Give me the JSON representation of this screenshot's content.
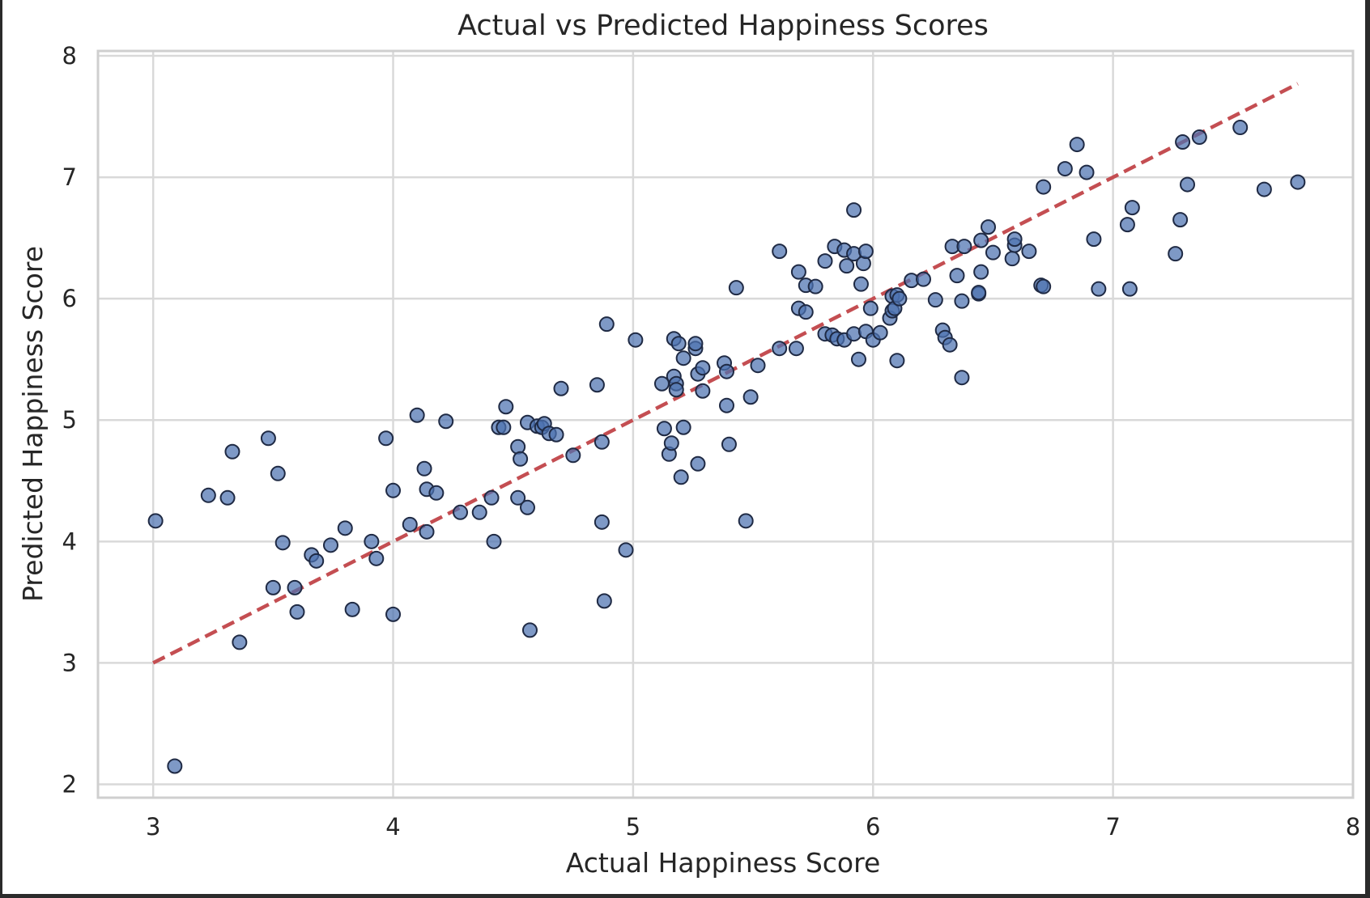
{
  "chart_data": {
    "type": "scatter",
    "title": "Actual vs Predicted Happiness Scores",
    "xlabel": "Actual Happiness Score",
    "ylabel": "Predicted Happiness Score",
    "xlim": [
      2.77,
      8.0
    ],
    "ylim": [
      1.89,
      8.04
    ],
    "xticks": [
      3,
      4,
      5,
      6,
      7,
      8
    ],
    "yticks": [
      2,
      3,
      4,
      5,
      6,
      7,
      8
    ],
    "grid": true,
    "legend": "none",
    "colors": {
      "points": "#4c72b0",
      "point_edge": "#1f2a44",
      "reference_line": "#c44e52",
      "grid": "#d9d9d9",
      "axes": "#cfcfcf"
    },
    "reference_line": {
      "x": [
        3.0,
        7.77
      ],
      "y": [
        3.0,
        7.77
      ],
      "style": "dashed"
    },
    "series": [
      {
        "points": [
          [
            3.01,
            4.17
          ],
          [
            3.09,
            2.15
          ],
          [
            3.23,
            4.38
          ],
          [
            3.31,
            4.36
          ],
          [
            3.33,
            4.74
          ],
          [
            3.36,
            3.17
          ],
          [
            3.48,
            4.85
          ],
          [
            3.5,
            3.62
          ],
          [
            3.52,
            4.56
          ],
          [
            3.54,
            3.99
          ],
          [
            3.59,
            3.62
          ],
          [
            3.6,
            3.42
          ],
          [
            3.66,
            3.89
          ],
          [
            3.68,
            3.84
          ],
          [
            3.74,
            3.97
          ],
          [
            3.8,
            4.11
          ],
          [
            3.83,
            3.44
          ],
          [
            3.91,
            4.0
          ],
          [
            3.93,
            3.86
          ],
          [
            3.97,
            4.85
          ],
          [
            4.0,
            4.42
          ],
          [
            4.0,
            3.4
          ],
          [
            4.07,
            4.14
          ],
          [
            4.1,
            5.04
          ],
          [
            4.13,
            4.6
          ],
          [
            4.14,
            4.43
          ],
          [
            4.14,
            4.08
          ],
          [
            4.18,
            4.4
          ],
          [
            4.22,
            4.99
          ],
          [
            4.28,
            4.24
          ],
          [
            4.36,
            4.24
          ],
          [
            4.41,
            4.36
          ],
          [
            4.42,
            4.0
          ],
          [
            4.44,
            4.94
          ],
          [
            4.46,
            4.94
          ],
          [
            4.47,
            5.11
          ],
          [
            4.52,
            4.78
          ],
          [
            4.52,
            4.36
          ],
          [
            4.53,
            4.68
          ],
          [
            4.56,
            4.98
          ],
          [
            4.56,
            4.28
          ],
          [
            4.57,
            3.27
          ],
          [
            4.6,
            4.95
          ],
          [
            4.62,
            4.94
          ],
          [
            4.63,
            4.97
          ],
          [
            4.65,
            4.89
          ],
          [
            4.68,
            4.88
          ],
          [
            4.7,
            5.26
          ],
          [
            4.75,
            4.71
          ],
          [
            4.85,
            5.29
          ],
          [
            4.87,
            4.82
          ],
          [
            4.87,
            4.16
          ],
          [
            4.88,
            3.51
          ],
          [
            4.89,
            5.79
          ],
          [
            4.97,
            3.93
          ],
          [
            5.01,
            5.66
          ],
          [
            5.12,
            5.3
          ],
          [
            5.13,
            4.93
          ],
          [
            5.15,
            4.72
          ],
          [
            5.16,
            4.81
          ],
          [
            5.17,
            5.67
          ],
          [
            5.17,
            5.36
          ],
          [
            5.18,
            5.3
          ],
          [
            5.18,
            5.25
          ],
          [
            5.19,
            5.63
          ],
          [
            5.2,
            4.53
          ],
          [
            5.21,
            5.51
          ],
          [
            5.21,
            4.94
          ],
          [
            5.26,
            5.59
          ],
          [
            5.26,
            5.63
          ],
          [
            5.27,
            5.38
          ],
          [
            5.27,
            4.64
          ],
          [
            5.29,
            5.43
          ],
          [
            5.29,
            5.24
          ],
          [
            5.38,
            5.47
          ],
          [
            5.39,
            5.4
          ],
          [
            5.39,
            5.12
          ],
          [
            5.4,
            4.8
          ],
          [
            5.43,
            6.09
          ],
          [
            5.47,
            4.17
          ],
          [
            5.49,
            5.19
          ],
          [
            5.52,
            5.45
          ],
          [
            5.61,
            5.59
          ],
          [
            5.61,
            6.39
          ],
          [
            5.68,
            5.59
          ],
          [
            5.69,
            5.92
          ],
          [
            5.69,
            6.22
          ],
          [
            5.72,
            6.11
          ],
          [
            5.72,
            5.89
          ],
          [
            5.76,
            6.1
          ],
          [
            5.8,
            6.31
          ],
          [
            5.8,
            5.71
          ],
          [
            5.83,
            5.7
          ],
          [
            5.84,
            6.43
          ],
          [
            5.85,
            5.67
          ],
          [
            5.88,
            6.4
          ],
          [
            5.88,
            5.66
          ],
          [
            5.89,
            6.27
          ],
          [
            5.92,
            6.73
          ],
          [
            5.92,
            6.37
          ],
          [
            5.92,
            5.71
          ],
          [
            5.94,
            5.5
          ],
          [
            5.95,
            6.12
          ],
          [
            5.96,
            6.29
          ],
          [
            5.97,
            6.39
          ],
          [
            5.97,
            5.73
          ],
          [
            5.99,
            5.92
          ],
          [
            6.0,
            5.66
          ],
          [
            6.03,
            5.72
          ],
          [
            6.07,
            5.84
          ],
          [
            6.08,
            5.9
          ],
          [
            6.08,
            6.02
          ],
          [
            6.09,
            5.92
          ],
          [
            6.1,
            6.03
          ],
          [
            6.1,
            5.49
          ],
          [
            6.11,
            6.0
          ],
          [
            6.16,
            6.15
          ],
          [
            6.21,
            6.16
          ],
          [
            6.26,
            5.99
          ],
          [
            6.29,
            5.74
          ],
          [
            6.3,
            5.68
          ],
          [
            6.32,
            5.62
          ],
          [
            6.33,
            6.43
          ],
          [
            6.35,
            6.19
          ],
          [
            6.37,
            5.98
          ],
          [
            6.37,
            5.35
          ],
          [
            6.38,
            6.43
          ],
          [
            6.44,
            6.04
          ],
          [
            6.44,
            6.05
          ],
          [
            6.45,
            6.48
          ],
          [
            6.45,
            6.22
          ],
          [
            6.48,
            6.59
          ],
          [
            6.5,
            6.38
          ],
          [
            6.58,
            6.33
          ],
          [
            6.59,
            6.44
          ],
          [
            6.59,
            6.49
          ],
          [
            6.65,
            6.39
          ],
          [
            6.7,
            6.11
          ],
          [
            6.71,
            6.1
          ],
          [
            6.71,
            6.92
          ],
          [
            6.8,
            7.07
          ],
          [
            6.85,
            7.27
          ],
          [
            6.89,
            7.04
          ],
          [
            6.92,
            6.49
          ],
          [
            6.94,
            6.08
          ],
          [
            7.06,
            6.61
          ],
          [
            7.07,
            6.08
          ],
          [
            7.08,
            6.75
          ],
          [
            7.26,
            6.37
          ],
          [
            7.28,
            6.65
          ],
          [
            7.29,
            7.29
          ],
          [
            7.31,
            6.94
          ],
          [
            7.36,
            7.33
          ],
          [
            7.53,
            7.41
          ],
          [
            7.63,
            6.9
          ],
          [
            7.77,
            6.96
          ]
        ]
      }
    ]
  }
}
